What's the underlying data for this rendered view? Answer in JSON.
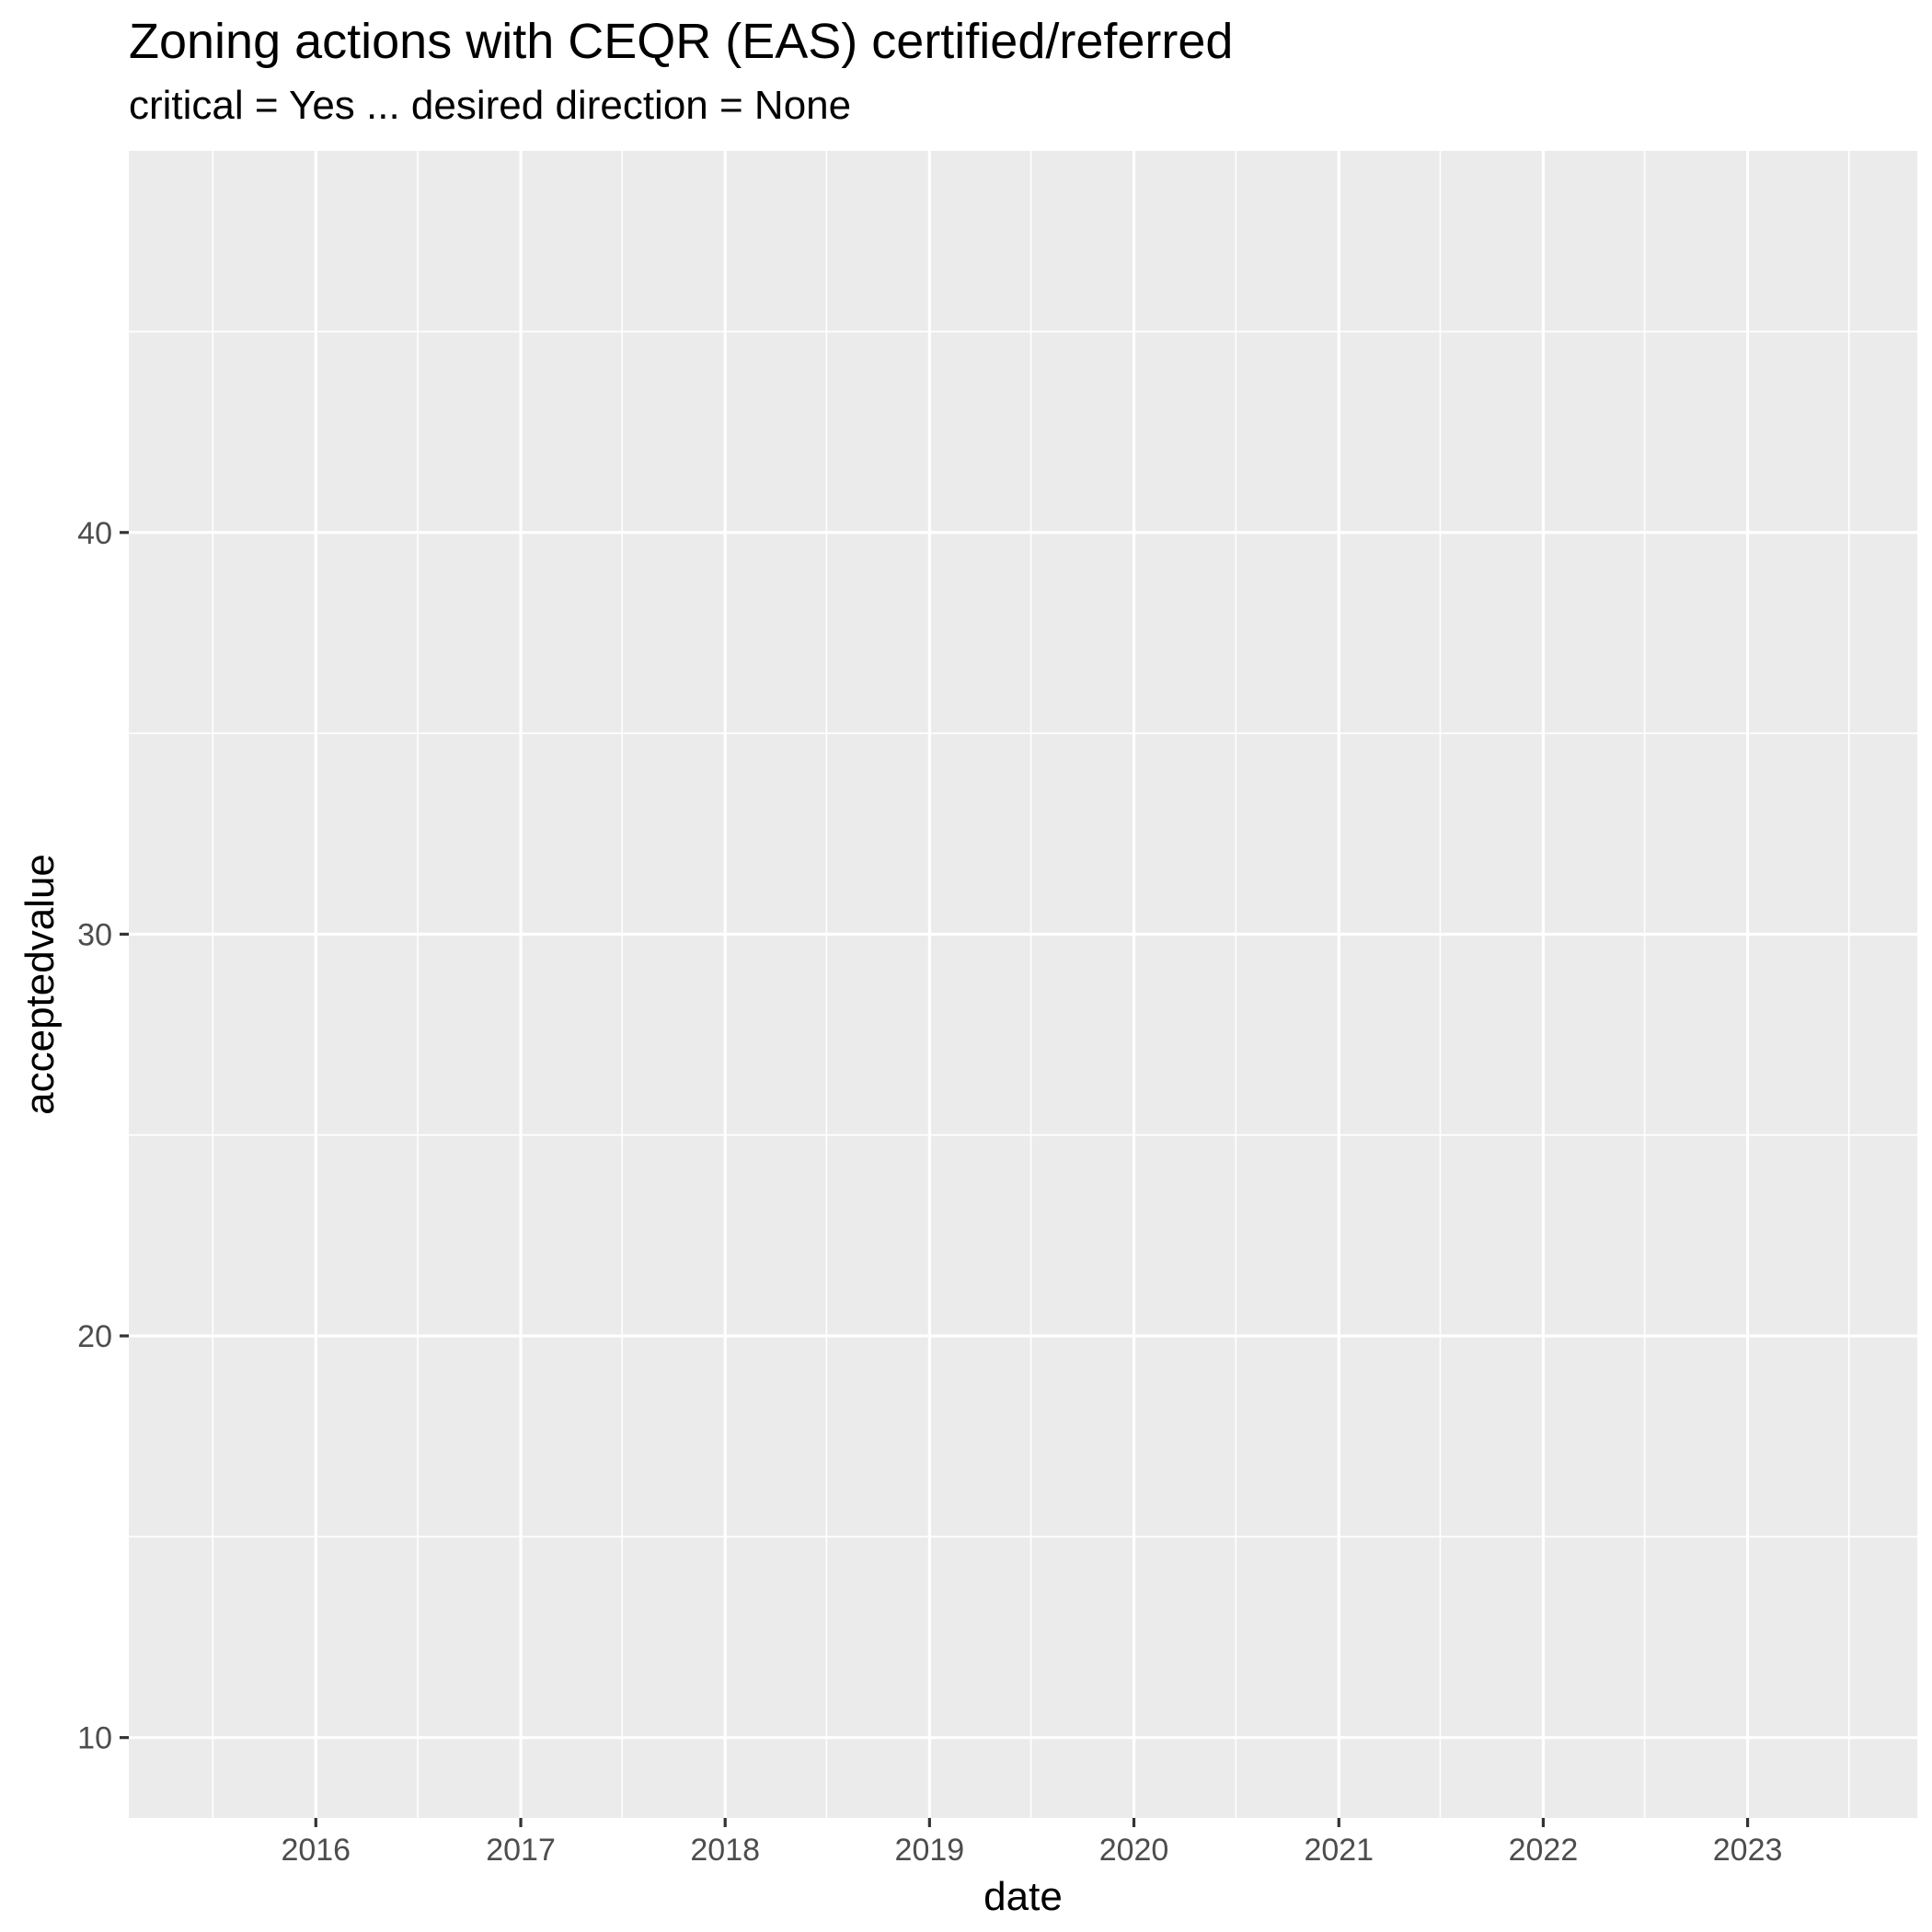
{
  "chart_data": {
    "type": "line",
    "title": "Zoning actions with CEQR (EAS) certified/referred",
    "subtitle": "critical = Yes ... desired direction = None",
    "xlabel": "date",
    "ylabel": "acceptedvalue",
    "x_ticks": [
      "2016",
      "2017",
      "2018",
      "2019",
      "2020",
      "2021",
      "2022",
      "2023"
    ],
    "y_ticks": [
      10,
      20,
      30,
      40
    ],
    "xlim": [
      "2015-02-01",
      "2023-10-31"
    ],
    "ylim": [
      8,
      49.5
    ],
    "series": [],
    "grid": true,
    "colors": {
      "panel": "#ebebeb",
      "grid": "#ffffff",
      "tick": "#333333",
      "tick_label": "#4d4d4d"
    }
  }
}
